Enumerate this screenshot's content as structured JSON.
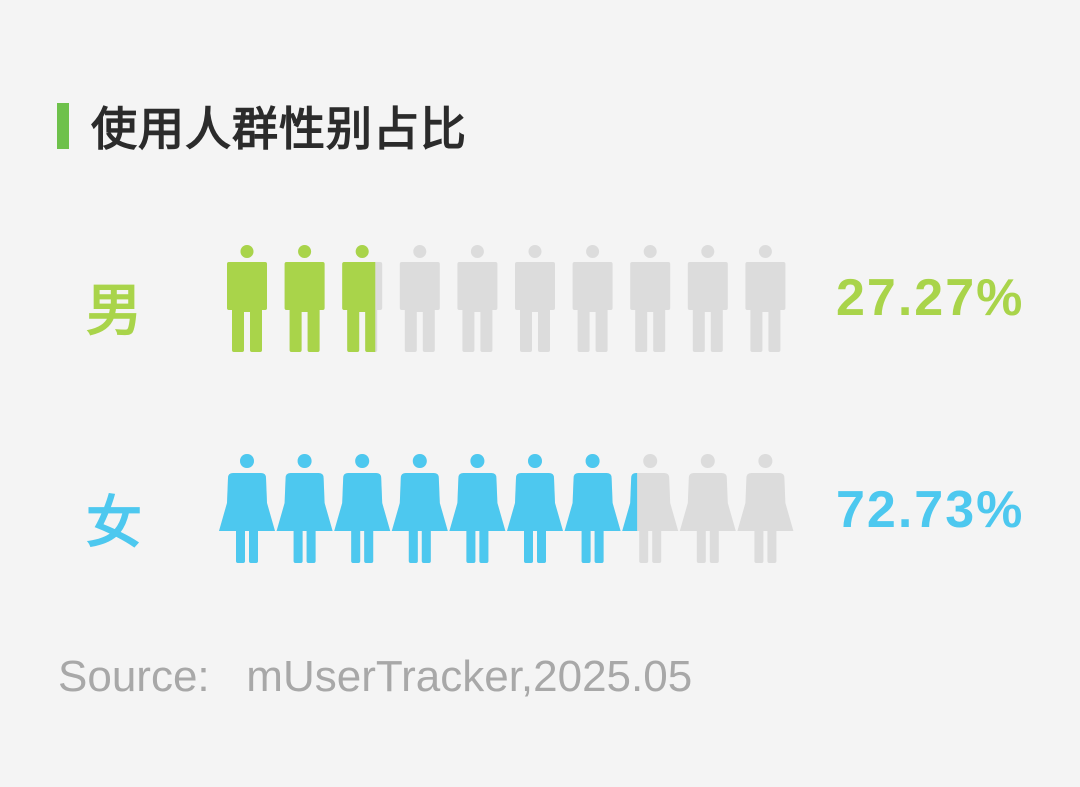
{
  "colors": {
    "accent_bar": "#6ec14b",
    "male": "#a9d44a",
    "female": "#4dc8ef",
    "inactive": "#dcdcdc",
    "source": "#a8a8a8"
  },
  "chart_data": {
    "type": "pictograph",
    "title": "使用人群性别占比",
    "icons_per_row": 10,
    "series": [
      {
        "name": "男",
        "value": 27.27,
        "label": "27.27%",
        "icon": "male-person-icon"
      },
      {
        "name": "女",
        "value": 72.73,
        "label": "72.73%",
        "icon": "female-person-icon"
      }
    ],
    "source": "Source:   mUserTracker,2025.05"
  }
}
